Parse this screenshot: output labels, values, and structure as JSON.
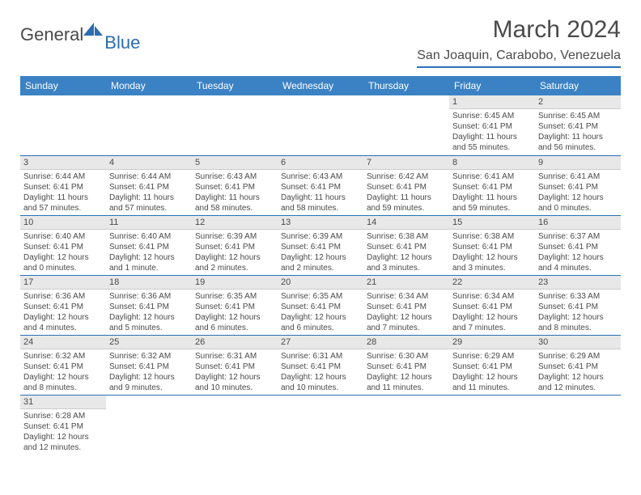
{
  "logo": {
    "general": "General",
    "blue": "Blue"
  },
  "title": "March 2024",
  "location": "San Joaquin, Carabobo, Venezuela",
  "colors": {
    "header_bg": "#3b82c4",
    "header_text": "#ffffff",
    "border": "#2a71b8",
    "daynum_bg": "#e8e8e8",
    "text": "#4a4a4a",
    "logo_blue": "#2a6db0"
  },
  "weekdays": [
    "Sunday",
    "Monday",
    "Tuesday",
    "Wednesday",
    "Thursday",
    "Friday",
    "Saturday"
  ],
  "weeks": [
    [
      null,
      null,
      null,
      null,
      null,
      {
        "d": "1",
        "sr": "Sunrise: 6:45 AM",
        "ss": "Sunset: 6:41 PM",
        "dl1": "Daylight: 11 hours",
        "dl2": "and 55 minutes."
      },
      {
        "d": "2",
        "sr": "Sunrise: 6:45 AM",
        "ss": "Sunset: 6:41 PM",
        "dl1": "Daylight: 11 hours",
        "dl2": "and 56 minutes."
      }
    ],
    [
      {
        "d": "3",
        "sr": "Sunrise: 6:44 AM",
        "ss": "Sunset: 6:41 PM",
        "dl1": "Daylight: 11 hours",
        "dl2": "and 57 minutes."
      },
      {
        "d": "4",
        "sr": "Sunrise: 6:44 AM",
        "ss": "Sunset: 6:41 PM",
        "dl1": "Daylight: 11 hours",
        "dl2": "and 57 minutes."
      },
      {
        "d": "5",
        "sr": "Sunrise: 6:43 AM",
        "ss": "Sunset: 6:41 PM",
        "dl1": "Daylight: 11 hours",
        "dl2": "and 58 minutes."
      },
      {
        "d": "6",
        "sr": "Sunrise: 6:43 AM",
        "ss": "Sunset: 6:41 PM",
        "dl1": "Daylight: 11 hours",
        "dl2": "and 58 minutes."
      },
      {
        "d": "7",
        "sr": "Sunrise: 6:42 AM",
        "ss": "Sunset: 6:41 PM",
        "dl1": "Daylight: 11 hours",
        "dl2": "and 59 minutes."
      },
      {
        "d": "8",
        "sr": "Sunrise: 6:41 AM",
        "ss": "Sunset: 6:41 PM",
        "dl1": "Daylight: 11 hours",
        "dl2": "and 59 minutes."
      },
      {
        "d": "9",
        "sr": "Sunrise: 6:41 AM",
        "ss": "Sunset: 6:41 PM",
        "dl1": "Daylight: 12 hours",
        "dl2": "and 0 minutes."
      }
    ],
    [
      {
        "d": "10",
        "sr": "Sunrise: 6:40 AM",
        "ss": "Sunset: 6:41 PM",
        "dl1": "Daylight: 12 hours",
        "dl2": "and 0 minutes."
      },
      {
        "d": "11",
        "sr": "Sunrise: 6:40 AM",
        "ss": "Sunset: 6:41 PM",
        "dl1": "Daylight: 12 hours",
        "dl2": "and 1 minute."
      },
      {
        "d": "12",
        "sr": "Sunrise: 6:39 AM",
        "ss": "Sunset: 6:41 PM",
        "dl1": "Daylight: 12 hours",
        "dl2": "and 2 minutes."
      },
      {
        "d": "13",
        "sr": "Sunrise: 6:39 AM",
        "ss": "Sunset: 6:41 PM",
        "dl1": "Daylight: 12 hours",
        "dl2": "and 2 minutes."
      },
      {
        "d": "14",
        "sr": "Sunrise: 6:38 AM",
        "ss": "Sunset: 6:41 PM",
        "dl1": "Daylight: 12 hours",
        "dl2": "and 3 minutes."
      },
      {
        "d": "15",
        "sr": "Sunrise: 6:38 AM",
        "ss": "Sunset: 6:41 PM",
        "dl1": "Daylight: 12 hours",
        "dl2": "and 3 minutes."
      },
      {
        "d": "16",
        "sr": "Sunrise: 6:37 AM",
        "ss": "Sunset: 6:41 PM",
        "dl1": "Daylight: 12 hours",
        "dl2": "and 4 minutes."
      }
    ],
    [
      {
        "d": "17",
        "sr": "Sunrise: 6:36 AM",
        "ss": "Sunset: 6:41 PM",
        "dl1": "Daylight: 12 hours",
        "dl2": "and 4 minutes."
      },
      {
        "d": "18",
        "sr": "Sunrise: 6:36 AM",
        "ss": "Sunset: 6:41 PM",
        "dl1": "Daylight: 12 hours",
        "dl2": "and 5 minutes."
      },
      {
        "d": "19",
        "sr": "Sunrise: 6:35 AM",
        "ss": "Sunset: 6:41 PM",
        "dl1": "Daylight: 12 hours",
        "dl2": "and 6 minutes."
      },
      {
        "d": "20",
        "sr": "Sunrise: 6:35 AM",
        "ss": "Sunset: 6:41 PM",
        "dl1": "Daylight: 12 hours",
        "dl2": "and 6 minutes."
      },
      {
        "d": "21",
        "sr": "Sunrise: 6:34 AM",
        "ss": "Sunset: 6:41 PM",
        "dl1": "Daylight: 12 hours",
        "dl2": "and 7 minutes."
      },
      {
        "d": "22",
        "sr": "Sunrise: 6:34 AM",
        "ss": "Sunset: 6:41 PM",
        "dl1": "Daylight: 12 hours",
        "dl2": "and 7 minutes."
      },
      {
        "d": "23",
        "sr": "Sunrise: 6:33 AM",
        "ss": "Sunset: 6:41 PM",
        "dl1": "Daylight: 12 hours",
        "dl2": "and 8 minutes."
      }
    ],
    [
      {
        "d": "24",
        "sr": "Sunrise: 6:32 AM",
        "ss": "Sunset: 6:41 PM",
        "dl1": "Daylight: 12 hours",
        "dl2": "and 8 minutes."
      },
      {
        "d": "25",
        "sr": "Sunrise: 6:32 AM",
        "ss": "Sunset: 6:41 PM",
        "dl1": "Daylight: 12 hours",
        "dl2": "and 9 minutes."
      },
      {
        "d": "26",
        "sr": "Sunrise: 6:31 AM",
        "ss": "Sunset: 6:41 PM",
        "dl1": "Daylight: 12 hours",
        "dl2": "and 10 minutes."
      },
      {
        "d": "27",
        "sr": "Sunrise: 6:31 AM",
        "ss": "Sunset: 6:41 PM",
        "dl1": "Daylight: 12 hours",
        "dl2": "and 10 minutes."
      },
      {
        "d": "28",
        "sr": "Sunrise: 6:30 AM",
        "ss": "Sunset: 6:41 PM",
        "dl1": "Daylight: 12 hours",
        "dl2": "and 11 minutes."
      },
      {
        "d": "29",
        "sr": "Sunrise: 6:29 AM",
        "ss": "Sunset: 6:41 PM",
        "dl1": "Daylight: 12 hours",
        "dl2": "and 11 minutes."
      },
      {
        "d": "30",
        "sr": "Sunrise: 6:29 AM",
        "ss": "Sunset: 6:41 PM",
        "dl1": "Daylight: 12 hours",
        "dl2": "and 12 minutes."
      }
    ],
    [
      {
        "d": "31",
        "sr": "Sunrise: 6:28 AM",
        "ss": "Sunset: 6:41 PM",
        "dl1": "Daylight: 12 hours",
        "dl2": "and 12 minutes."
      },
      null,
      null,
      null,
      null,
      null,
      null
    ]
  ]
}
